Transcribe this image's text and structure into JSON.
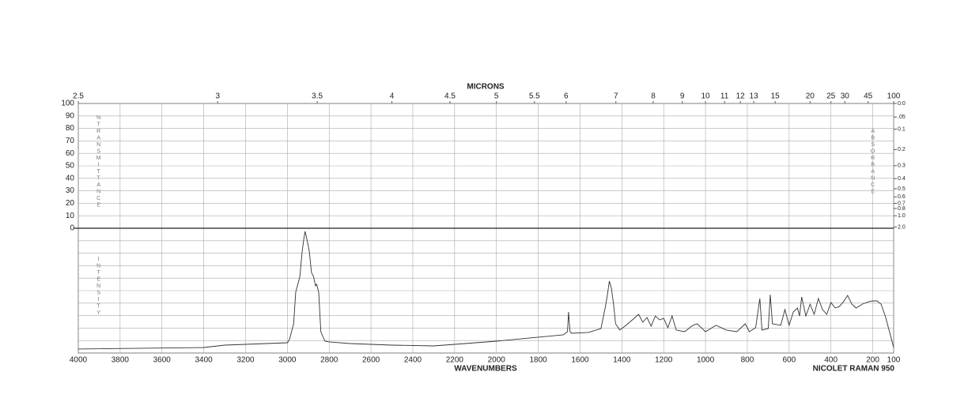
{
  "chart_data": {
    "type": "line",
    "top_label": "MICRONS",
    "x_label": "WAVENUMBERS",
    "note": "NICOLET RAMAN 950",
    "y_label": "%TRANSMITTANCE",
    "y2_label": "ABSORBANCE",
    "intensity_label": "INTENSITY",
    "xlim": [
      4000,
      100
    ],
    "xticks": [
      4000,
      3800,
      3600,
      3400,
      3200,
      3000,
      2800,
      2600,
      2400,
      2200,
      2000,
      1800,
      1600,
      1400,
      1200,
      1000,
      800,
      600,
      400,
      200,
      100
    ],
    "top_ticks": [
      2.5,
      3,
      3.5,
      4,
      4.5,
      5,
      5.5,
      6,
      7,
      8,
      9,
      10,
      11,
      12,
      13,
      15,
      20,
      25,
      30,
      45,
      100
    ],
    "ylim": [
      0,
      100
    ],
    "yticks": [
      0,
      10,
      20,
      30,
      40,
      50,
      60,
      70,
      80,
      90,
      100
    ],
    "y2ticks": [
      {
        "value": 0,
        "label": "0.0"
      },
      {
        "value": 0.05,
        "label": ".05"
      },
      0.1,
      0.2,
      0.3,
      0.4,
      0.5,
      0.6,
      0.7,
      0.8,
      {
        "value": 1,
        "label": "1.0"
      },
      {
        "value": 2,
        "label": "2.0"
      }
    ],
    "grid": true,
    "color": "#333333",
    "x": [
      4000,
      3400,
      3300,
      3000,
      2990,
      2970,
      2960,
      2940,
      2930,
      2920,
      2915,
      2905,
      2895,
      2885,
      2875,
      2865,
      2860,
      2850,
      2840,
      2820,
      2800,
      2700,
      2500,
      2300,
      2100,
      2000,
      1800,
      1680,
      1660,
      1655,
      1648,
      1640,
      1560,
      1500,
      1480,
      1470,
      1460,
      1450,
      1440,
      1430,
      1410,
      1380,
      1350,
      1320,
      1300,
      1280,
      1260,
      1240,
      1220,
      1200,
      1180,
      1160,
      1140,
      1100,
      1060,
      1040,
      1000,
      950,
      900,
      850,
      810,
      790,
      760,
      740,
      730,
      700,
      690,
      680,
      640,
      620,
      600,
      580,
      560,
      550,
      540,
      520,
      500,
      480,
      460,
      440,
      420,
      400,
      380,
      360,
      340,
      320,
      300,
      280,
      250,
      220,
      200,
      180,
      160,
      140,
      120,
      100
    ],
    "values": [
      3.2,
      4.4,
      6.3,
      8.2,
      10.8,
      23.4,
      48.7,
      61.4,
      80.4,
      93.0,
      97.5,
      89.9,
      81.6,
      64.6,
      61.4,
      53.8,
      55.1,
      48.7,
      17.1,
      9.5,
      8.9,
      7.6,
      6.3,
      5.7,
      8.2,
      9.5,
      12.7,
      14.6,
      17.1,
      32.9,
      17.1,
      15.8,
      16.5,
      19.6,
      36.1,
      45.6,
      57.6,
      51.9,
      39.2,
      23.4,
      18.4,
      22.2,
      26.6,
      31.0,
      24.7,
      28.5,
      21.5,
      29.7,
      26.6,
      27.8,
      20.3,
      29.7,
      18.4,
      17.1,
      22.2,
      23.4,
      17.1,
      22.2,
      18.4,
      17.1,
      23.4,
      17.1,
      20.3,
      43.7,
      18.4,
      19.6,
      46.8,
      23.4,
      22.2,
      34.8,
      22.2,
      32.9,
      36.1,
      29.7,
      44.9,
      29.7,
      39.2,
      31.0,
      43.7,
      34.8,
      31.0,
      40.5,
      36.1,
      37.3,
      41.1,
      46.2,
      39.2,
      36.1,
      39.2,
      41.1,
      41.8,
      41.8,
      39.2,
      29.7,
      17.1,
      4.4
    ]
  }
}
